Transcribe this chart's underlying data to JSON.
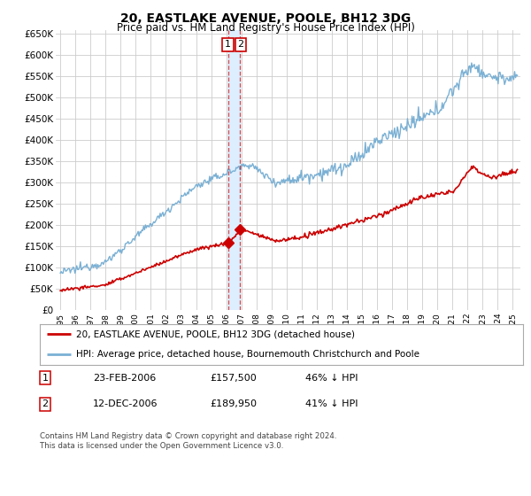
{
  "title": "20, EASTLAKE AVENUE, POOLE, BH12 3DG",
  "subtitle": "Price paid vs. HM Land Registry's House Price Index (HPI)",
  "legend_line1": "20, EASTLAKE AVENUE, POOLE, BH12 3DG (detached house)",
  "legend_line2": "HPI: Average price, detached house, Bournemouth Christchurch and Poole",
  "footnote": "Contains HM Land Registry data © Crown copyright and database right 2024.\nThis data is licensed under the Open Government Licence v3.0.",
  "sale1_label": "1",
  "sale1_date": "23-FEB-2006",
  "sale1_price": "£157,500",
  "sale1_hpi": "46% ↓ HPI",
  "sale2_label": "2",
  "sale2_date": "12-DEC-2006",
  "sale2_price": "£189,950",
  "sale2_hpi": "41% ↓ HPI",
  "sale1_x": 2006.15,
  "sale1_y": 157500,
  "sale2_x": 2006.92,
  "sale2_y": 189950,
  "vline_x1": 2006.15,
  "vline_x2": 2006.92,
  "ylim": [
    0,
    660000
  ],
  "xlim_start": 1994.7,
  "xlim_end": 2025.5,
  "red_color": "#cc0000",
  "blue_color": "#7ab0d4",
  "shade_color": "#ddeeff",
  "grid_color": "#cccccc",
  "bg_color": "#ffffff",
  "plot_bg": "#ffffff"
}
